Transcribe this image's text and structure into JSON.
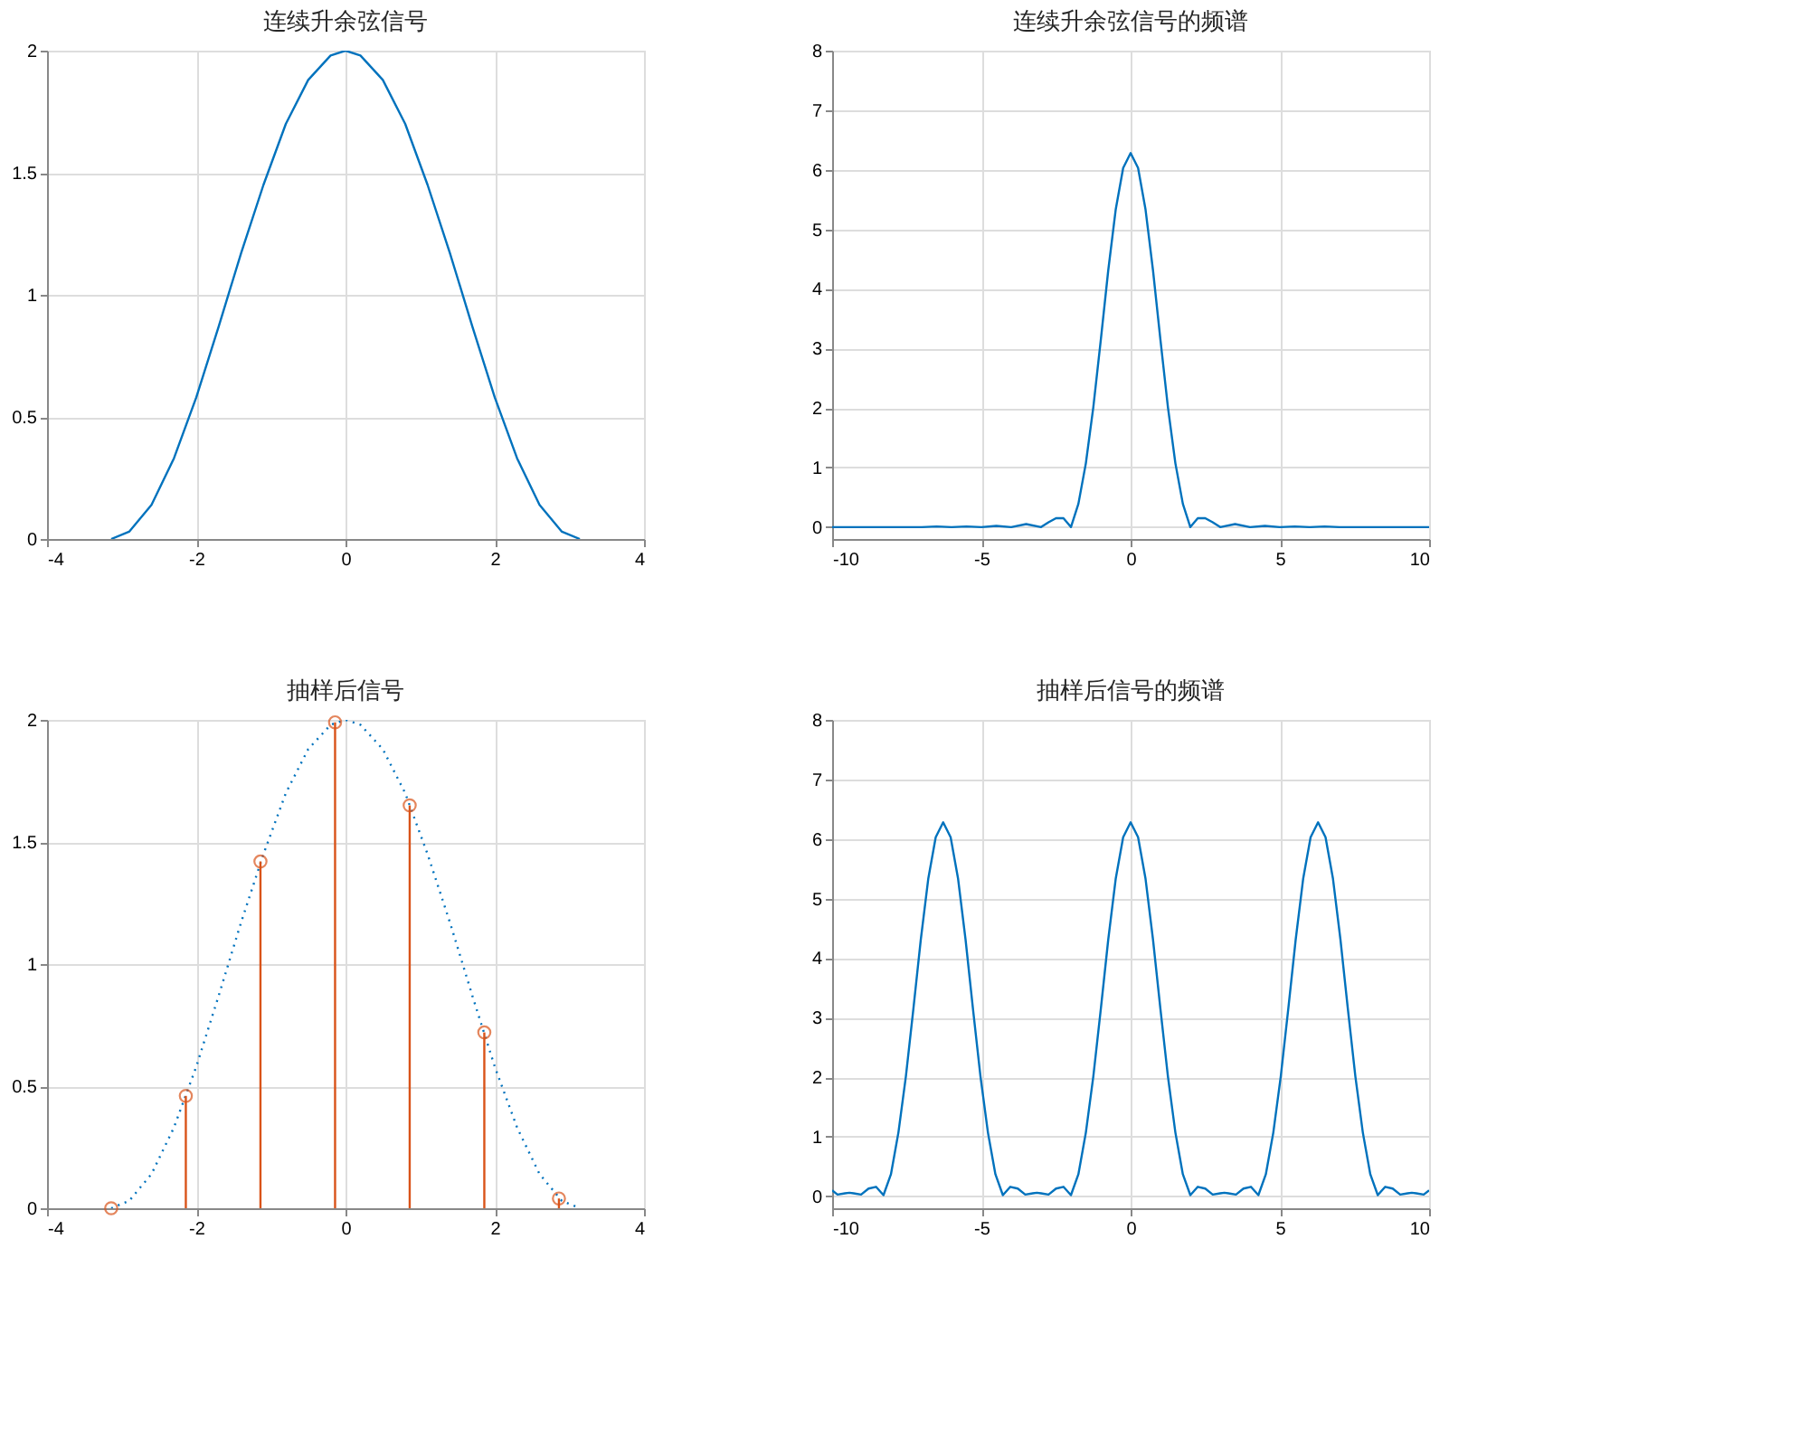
{
  "chart_data": [
    {
      "type": "line",
      "title": "连续升余弦信号",
      "xlim": [
        -4,
        4
      ],
      "ylim": [
        0,
        2
      ],
      "xticks": [
        -4,
        -2,
        0,
        2,
        4
      ],
      "yticks": [
        0,
        0.5,
        1,
        1.5,
        2
      ],
      "grid": true,
      "series": [
        {
          "color": "#0072bd",
          "x": [
            -3.14,
            -2.9,
            -2.6,
            -2.3,
            -2.0,
            -1.7,
            -1.4,
            -1.1,
            -0.8,
            -0.5,
            -0.2,
            0,
            0.2,
            0.5,
            0.8,
            1.1,
            1.4,
            1.7,
            2.0,
            2.3,
            2.6,
            2.9,
            3.14
          ],
          "values": [
            0,
            0.03,
            0.14,
            0.33,
            0.58,
            0.87,
            1.17,
            1.45,
            1.7,
            1.88,
            1.98,
            2,
            1.98,
            1.88,
            1.7,
            1.45,
            1.17,
            0.87,
            0.58,
            0.33,
            0.14,
            0.03,
            0
          ]
        }
      ]
    },
    {
      "type": "line",
      "title": "连续升余弦信号的频谱",
      "xlim": [
        -10,
        10
      ],
      "ylim": [
        -0.2,
        8
      ],
      "xticks": [
        -10,
        -5,
        0,
        5,
        10
      ],
      "yticks": [
        0,
        1,
        2,
        3,
        4,
        5,
        6,
        7,
        8
      ],
      "grid": true,
      "series": [
        {
          "color": "#0072bd",
          "x": [
            -10,
            -9,
            -8,
            -7,
            -6.5,
            -6,
            -5.5,
            -5,
            -4.5,
            -4,
            -3.5,
            -3,
            -2.75,
            -2.5,
            -2.25,
            -2,
            -1.75,
            -1.5,
            -1.25,
            -1,
            -0.75,
            -0.5,
            -0.25,
            0,
            0.25,
            0.5,
            0.75,
            1,
            1.25,
            1.5,
            1.75,
            2,
            2.25,
            2.5,
            2.75,
            3,
            3.5,
            4,
            4.5,
            5,
            5.5,
            6,
            6.5,
            7,
            8,
            9,
            10
          ],
          "values": [
            0,
            0,
            0,
            0,
            0.01,
            0,
            0.01,
            0,
            0.02,
            0,
            0.05,
            0,
            0.08,
            0.15,
            0.15,
            0,
            0.39,
            1.07,
            2.01,
            3.14,
            4.31,
            5.33,
            6.03,
            6.28,
            6.03,
            5.33,
            4.31,
            3.14,
            2.01,
            1.07,
            0.39,
            0,
            0.15,
            0.15,
            0.08,
            0,
            0.05,
            0,
            0.02,
            0,
            0.01,
            0,
            0.01,
            0,
            0,
            0,
            0
          ]
        }
      ]
    },
    {
      "type": "line",
      "title": "抽样后信号",
      "xlim": [
        -4,
        4
      ],
      "ylim": [
        0,
        2
      ],
      "xticks": [
        -4,
        -2,
        0,
        2,
        4
      ],
      "yticks": [
        0,
        0.5,
        1,
        1.5,
        2
      ],
      "grid": true,
      "series": [
        {
          "type": "line",
          "line_style": "dotted",
          "color": "#0072bd",
          "x": [
            -3.14,
            -2.9,
            -2.6,
            -2.3,
            -2.0,
            -1.7,
            -1.4,
            -1.1,
            -0.8,
            -0.5,
            -0.2,
            0,
            0.2,
            0.5,
            0.8,
            1.1,
            1.4,
            1.7,
            2.0,
            2.3,
            2.6,
            2.9,
            3.14
          ],
          "values": [
            0,
            0.03,
            0.14,
            0.33,
            0.58,
            0.87,
            1.17,
            1.45,
            1.7,
            1.88,
            1.98,
            2,
            1.98,
            1.88,
            1.7,
            1.45,
            1.17,
            0.87,
            0.58,
            0.33,
            0.14,
            0.03,
            0
          ]
        },
        {
          "type": "lollipop",
          "marker": "circle",
          "color": "#d95319",
          "x": [
            -3.14,
            -2.14,
            -1.14,
            -0.14,
            0.86,
            1.86,
            2.86
          ],
          "values": [
            0,
            0.46,
            1.42,
            1.99,
            1.65,
            0.72,
            0.04
          ]
        }
      ]
    },
    {
      "type": "line",
      "title": "抽样后信号的频谱",
      "xlim": [
        -10,
        10
      ],
      "ylim": [
        -0.2,
        8
      ],
      "xticks": [
        -10,
        -5,
        0,
        5,
        10
      ],
      "yticks": [
        0,
        1,
        2,
        3,
        4,
        5,
        6,
        7,
        8
      ],
      "grid": true,
      "series": [
        {
          "color": "#0072bd",
          "x": [
            -10,
            -9.82,
            -9.57,
            -9.42,
            -9.28,
            -9.03,
            -8.78,
            -8.53,
            -8.28,
            -8.03,
            -7.78,
            -7.53,
            -7.28,
            -7.03,
            -6.78,
            -6.53,
            -6.28,
            -6.03,
            -5.78,
            -5.53,
            -5.28,
            -5.03,
            -4.78,
            -4.53,
            -4.28,
            -4.03,
            -3.78,
            -3.53,
            -3.28,
            -3.14,
            -3,
            -2.75,
            -2.5,
            -2.25,
            -2,
            -1.75,
            -1.5,
            -1.25,
            -1,
            -0.75,
            -0.5,
            -0.25,
            0,
            0.25,
            0.5,
            0.75,
            1,
            1.25,
            1.5,
            1.75,
            2,
            2.25,
            2.5,
            2.75,
            3,
            3.14,
            3.28,
            3.53,
            3.78,
            4.03,
            4.28,
            4.53,
            4.78,
            5.03,
            5.28,
            5.53,
            5.78,
            6.03,
            6.28,
            6.53,
            6.78,
            7.03,
            7.28,
            7.53,
            7.78,
            8.03,
            8.28,
            8.53,
            8.78,
            9.03,
            9.28,
            9.42,
            9.57,
            9.82,
            10
          ],
          "values": [
            0.1,
            0.03,
            0.05,
            0.06,
            0.05,
            0.03,
            0.13,
            0.16,
            0.02,
            0.37,
            1.07,
            2.01,
            3.14,
            4.31,
            5.33,
            6.03,
            6.28,
            6.03,
            5.33,
            4.31,
            3.14,
            2.01,
            1.07,
            0.37,
            0.02,
            0.16,
            0.13,
            0.03,
            0.05,
            0.06,
            0.05,
            0.03,
            0.13,
            0.16,
            0.02,
            0.37,
            1.07,
            2.01,
            3.14,
            4.31,
            5.33,
            6.03,
            6.28,
            6.03,
            5.33,
            4.31,
            3.14,
            2.01,
            1.07,
            0.37,
            0.02,
            0.16,
            0.13,
            0.03,
            0.05,
            0.06,
            0.05,
            0.03,
            0.13,
            0.16,
            0.02,
            0.37,
            1.07,
            2.01,
            3.14,
            4.31,
            5.33,
            6.03,
            6.28,
            6.03,
            5.33,
            4.31,
            3.14,
            2.01,
            1.07,
            0.37,
            0.02,
            0.16,
            0.13,
            0.03,
            0.05,
            0.06,
            0.05,
            0.03,
            0.1
          ]
        }
      ]
    }
  ]
}
